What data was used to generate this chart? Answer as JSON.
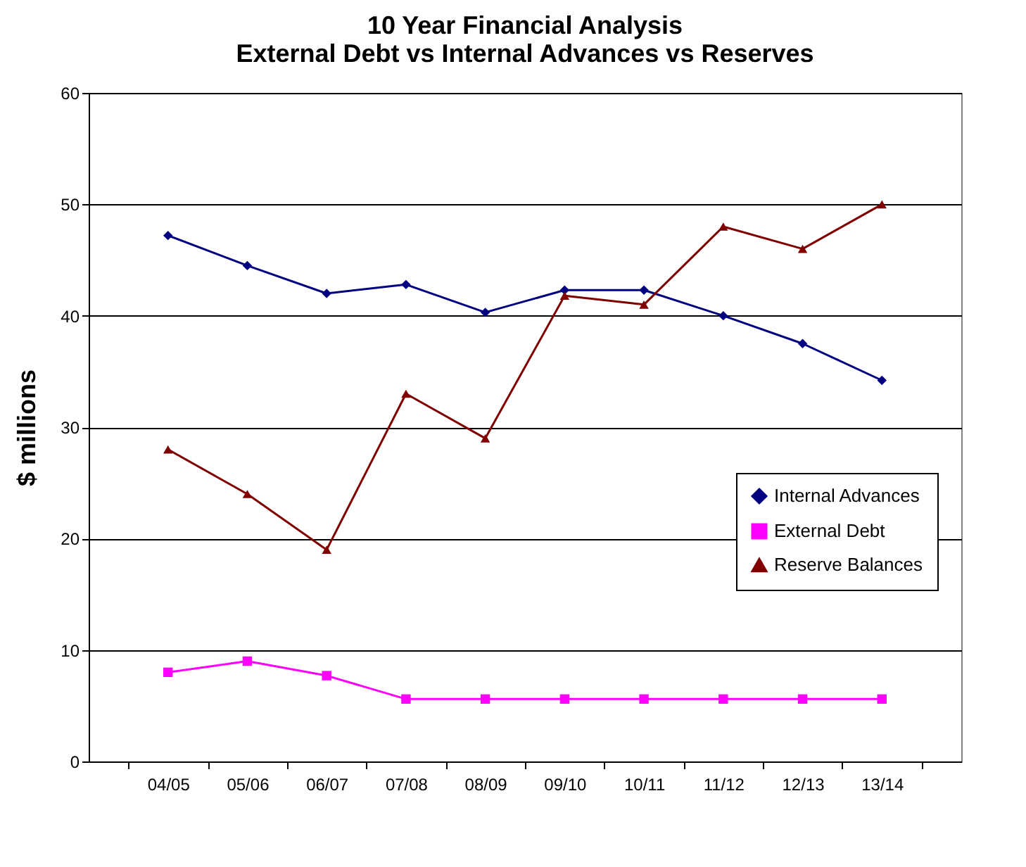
{
  "chart_data": {
    "type": "line",
    "title": [
      "10 Year Financial Analysis",
      "External Debt vs Internal Advances vs Reserves"
    ],
    "ylabel": "$ millions",
    "categories": [
      "04/05",
      "05/06",
      "06/07",
      "07/08",
      "08/09",
      "09/10",
      "10/11",
      "11/12",
      "12/13",
      "13/14"
    ],
    "series": [
      {
        "name": "Internal Advances",
        "color": "#000080",
        "marker": "diamond",
        "values": [
          47.2,
          44.5,
          42.0,
          42.8,
          40.3,
          42.3,
          42.3,
          40.0,
          37.5,
          34.2
        ]
      },
      {
        "name": "External Debt",
        "color": "#ff00ff",
        "marker": "square",
        "values": [
          8.0,
          9.0,
          7.7,
          5.6,
          5.6,
          5.6,
          5.6,
          5.6,
          5.6,
          5.6
        ]
      },
      {
        "name": "Reserve Balances",
        "color": "#800000",
        "marker": "triangle",
        "values": [
          28,
          24,
          19,
          33,
          29,
          41.8,
          41,
          48,
          46,
          50
        ]
      }
    ],
    "ylim": [
      0,
      60
    ],
    "yticks": [
      0,
      10,
      20,
      30,
      40,
      50,
      60
    ],
    "grid": "y",
    "legend": "right",
    "line_style": "solid"
  }
}
